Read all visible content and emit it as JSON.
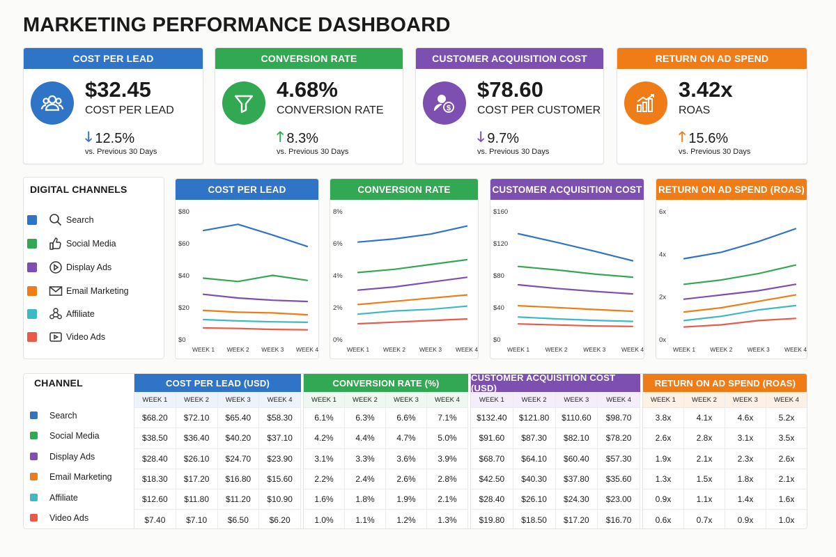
{
  "page": {
    "title": "MARKETING PERFORMANCE DASHBOARD"
  },
  "colors": {
    "blue": "#2f74c6",
    "green": "#33a853",
    "purple": "#7c4fb0",
    "orange": "#f07c17",
    "teal": "#3bb9c4",
    "red": "#ea5a4a"
  },
  "kpis": [
    {
      "header": "COST PER LEAD",
      "value": "$32.45",
      "subtitle": "COST PER LEAD",
      "change": "12.5%",
      "direction": "down",
      "arrow": "🡓",
      "period": "vs. Previous 30 Days",
      "icon": "users-icon",
      "color": "#2f74c6"
    },
    {
      "header": "CONVERSION RATE",
      "value": "4.68%",
      "subtitle": "CONVERSION RATE",
      "change": "8.3%",
      "direction": "up",
      "arrow": "🡑",
      "period": "vs. Previous 30 Days",
      "icon": "funnel-icon",
      "color": "#33a853"
    },
    {
      "header": "CUSTOMER ACQUISITION COST",
      "value": "$78.60",
      "subtitle": "COST PER CUSTOMER",
      "change": "9.7%",
      "direction": "down",
      "arrow": "🡓",
      "period": "vs. Previous 30 Days",
      "icon": "customer-dollar-icon",
      "color": "#7c4fb0"
    },
    {
      "header": "RETURN ON AD SPEND",
      "value": "3.42x",
      "subtitle": "ROAS",
      "change": "15.6%",
      "direction": "up",
      "arrow": "🡑",
      "period": "vs. Previous 30 Days",
      "icon": "bar-chart-growth-icon",
      "color": "#f07c17"
    }
  ],
  "channels": {
    "title": "DIGITAL CHANNELS",
    "items": [
      {
        "label": "Search",
        "icon": "search-icon",
        "color": "#2f74c6"
      },
      {
        "label": "Social Media",
        "icon": "thumbs-up-icon",
        "color": "#33a853"
      },
      {
        "label": "Display Ads",
        "icon": "play-icon",
        "color": "#7c4fb0"
      },
      {
        "label": "Email Marketing",
        "icon": "mail-icon",
        "color": "#f07c17"
      },
      {
        "label": "Affiliate",
        "icon": "network-icon",
        "color": "#3bb9c4"
      },
      {
        "label": "Video Ads",
        "icon": "video-icon",
        "color": "#ea5a4a"
      }
    ]
  },
  "chart_data": [
    {
      "type": "line",
      "title": "COST PER LEAD",
      "categories": [
        "WEEK 1",
        "WEEK 2",
        "WEEK 3",
        "WEEK 4"
      ],
      "ylim": [
        0,
        80
      ],
      "yticks": [
        "$0",
        "$20",
        "$40",
        "$60",
        "$80"
      ],
      "grid": false,
      "series": [
        {
          "name": "Search",
          "values": [
            68.2,
            72.1,
            65.4,
            58.3
          ]
        },
        {
          "name": "Social Media",
          "values": [
            38.5,
            36.4,
            40.2,
            37.1
          ]
        },
        {
          "name": "Display Ads",
          "values": [
            28.4,
            26.1,
            24.7,
            23.9
          ]
        },
        {
          "name": "Email Marketing",
          "values": [
            18.3,
            17.2,
            16.8,
            15.6
          ]
        },
        {
          "name": "Affiliate",
          "values": [
            12.6,
            11.8,
            11.2,
            10.9
          ]
        },
        {
          "name": "Video Ads",
          "values": [
            7.4,
            7.1,
            6.5,
            6.2
          ]
        }
      ]
    },
    {
      "type": "line",
      "title": "CONVERSION RATE",
      "categories": [
        "WEEK 1",
        "WEEK 2",
        "WEEK 3",
        "WEEK 4"
      ],
      "ylim": [
        0,
        8
      ],
      "yticks": [
        "0%",
        "2%",
        "4%",
        "6%",
        "8%"
      ],
      "grid": false,
      "series": [
        {
          "name": "Search",
          "values": [
            6.1,
            6.3,
            6.6,
            7.1
          ]
        },
        {
          "name": "Social Media",
          "values": [
            4.2,
            4.4,
            4.7,
            5.0
          ]
        },
        {
          "name": "Display Ads",
          "values": [
            3.1,
            3.3,
            3.6,
            3.9
          ]
        },
        {
          "name": "Email Marketing",
          "values": [
            2.2,
            2.4,
            2.6,
            2.8
          ]
        },
        {
          "name": "Affiliate",
          "values": [
            1.6,
            1.8,
            1.9,
            2.1
          ]
        },
        {
          "name": "Video Ads",
          "values": [
            1.0,
            1.1,
            1.2,
            1.3
          ]
        }
      ]
    },
    {
      "type": "line",
      "title": "CUSTOMER ACQUISITION COST",
      "categories": [
        "WEEK 1",
        "WEEK 2",
        "WEEK 3",
        "WEEK 4"
      ],
      "ylim": [
        0,
        160
      ],
      "yticks": [
        "$0",
        "$40",
        "$80",
        "$120",
        "$160"
      ],
      "grid": false,
      "series": [
        {
          "name": "Search",
          "values": [
            132.4,
            121.8,
            110.6,
            98.7
          ]
        },
        {
          "name": "Social Media",
          "values": [
            91.6,
            87.3,
            82.1,
            78.2
          ]
        },
        {
          "name": "Display Ads",
          "values": [
            68.7,
            64.1,
            60.4,
            57.3
          ]
        },
        {
          "name": "Email Marketing",
          "values": [
            42.5,
            40.3,
            37.8,
            35.6
          ]
        },
        {
          "name": "Affiliate",
          "values": [
            28.4,
            26.1,
            24.3,
            23.0
          ]
        },
        {
          "name": "Video Ads",
          "values": [
            19.8,
            18.5,
            17.2,
            16.7
          ]
        }
      ]
    },
    {
      "type": "line",
      "title": "RETURN ON AD SPEND (ROAS)",
      "categories": [
        "WEEK 1",
        "WEEK 2",
        "WEEK 3",
        "WEEK 4"
      ],
      "ylim": [
        0,
        6
      ],
      "yticks": [
        "0x",
        "2x",
        "4x",
        "6x"
      ],
      "grid": false,
      "series": [
        {
          "name": "Search",
          "values": [
            3.8,
            4.1,
            4.6,
            5.2
          ]
        },
        {
          "name": "Social Media",
          "values": [
            2.6,
            2.8,
            3.1,
            3.5
          ]
        },
        {
          "name": "Display Ads",
          "values": [
            1.9,
            2.1,
            2.3,
            2.6
          ]
        },
        {
          "name": "Email Marketing",
          "values": [
            1.3,
            1.5,
            1.8,
            2.1
          ]
        },
        {
          "name": "Affiliate",
          "values": [
            0.9,
            1.1,
            1.4,
            1.6
          ]
        },
        {
          "name": "Video Ads",
          "values": [
            0.6,
            0.7,
            0.9,
            1.0
          ]
        }
      ]
    }
  ],
  "table": {
    "channel_header": "CHANNEL",
    "week_headers": [
      "WEEK 1",
      "WEEK 2",
      "WEEK 3",
      "WEEK 4"
    ],
    "channels": [
      "Search",
      "Social Media",
      "Display Ads",
      "Email Marketing",
      "Affiliate",
      "Video Ads"
    ],
    "groups": [
      {
        "title": "COST PER LEAD (USD)",
        "color": "#2f74c6",
        "rows": [
          [
            "$68.20",
            "$72.10",
            "$65.40",
            "$58.30"
          ],
          [
            "$38.50",
            "$36.40",
            "$40.20",
            "$37.10"
          ],
          [
            "$28.40",
            "$26.10",
            "$24.70",
            "$23.90"
          ],
          [
            "$18.30",
            "$17.20",
            "$16.80",
            "$15.60"
          ],
          [
            "$12.60",
            "$11.80",
            "$11.20",
            "$10.90"
          ],
          [
            "$7.40",
            "$7.10",
            "$6.50",
            "$6.20"
          ]
        ]
      },
      {
        "title": "CONVERSION RATE (%)",
        "color": "#33a853",
        "rows": [
          [
            "6.1%",
            "6.3%",
            "6.6%",
            "7.1%"
          ],
          [
            "4.2%",
            "4.4%",
            "4.7%",
            "5.0%"
          ],
          [
            "3.1%",
            "3.3%",
            "3.6%",
            "3.9%"
          ],
          [
            "2.2%",
            "2.4%",
            "2.6%",
            "2.8%"
          ],
          [
            "1.6%",
            "1.8%",
            "1.9%",
            "2.1%"
          ],
          [
            "1.0%",
            "1.1%",
            "1.2%",
            "1.3%"
          ]
        ]
      },
      {
        "title": "CUSTOMER ACQUISITION COST (USD)",
        "color": "#7c4fb0",
        "rows": [
          [
            "$132.40",
            "$121.80",
            "$110.60",
            "$98.70"
          ],
          [
            "$91.60",
            "$87.30",
            "$82.10",
            "$78.20"
          ],
          [
            "$68.70",
            "$64.10",
            "$60.40",
            "$57.30"
          ],
          [
            "$42.50",
            "$40.30",
            "$37.80",
            "$35.60"
          ],
          [
            "$28.40",
            "$26.10",
            "$24.30",
            "$23.00"
          ],
          [
            "$19.80",
            "$18.50",
            "$17.20",
            "$16.70"
          ]
        ]
      },
      {
        "title": "RETURN ON AD SPEND (ROAS)",
        "color": "#f07c17",
        "rows": [
          [
            "3.8x",
            "4.1x",
            "4.6x",
            "5.2x"
          ],
          [
            "2.6x",
            "2.8x",
            "3.1x",
            "3.5x"
          ],
          [
            "1.9x",
            "2.1x",
            "2.3x",
            "2.6x"
          ],
          [
            "1.3x",
            "1.5x",
            "1.8x",
            "2.1x"
          ],
          [
            "0.9x",
            "1.1x",
            "1.4x",
            "1.6x"
          ],
          [
            "0.6x",
            "0.7x",
            "0.9x",
            "1.0x"
          ]
        ]
      }
    ]
  }
}
